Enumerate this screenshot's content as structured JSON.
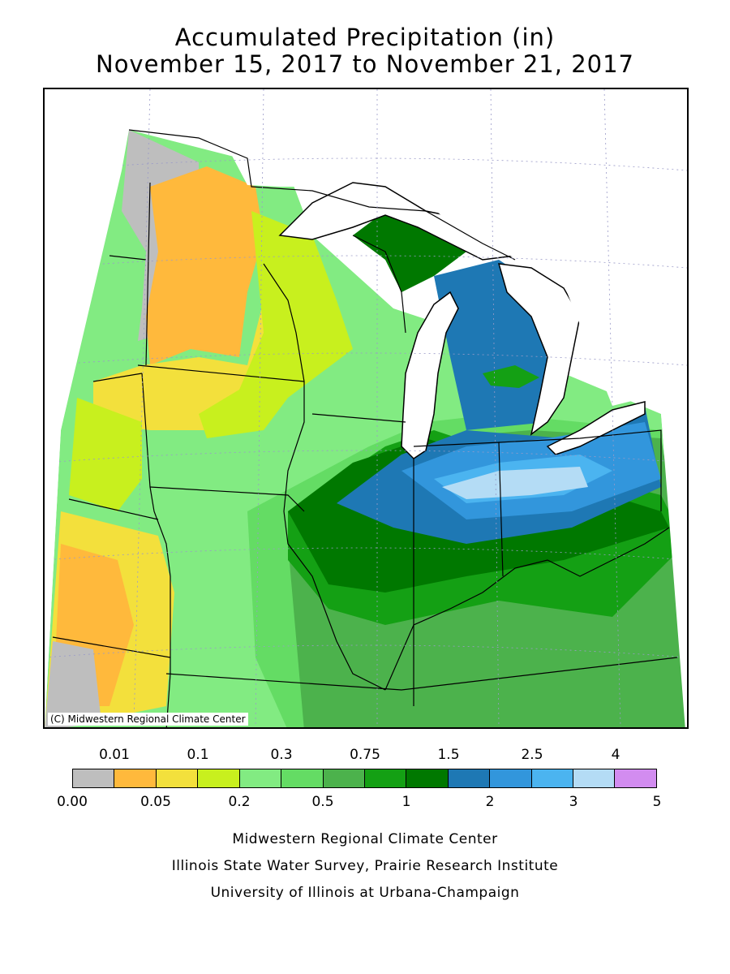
{
  "title": {
    "line1": "Accumulated Precipitation (in)",
    "line2": "November 15, 2017 to November 21, 2017"
  },
  "map": {
    "copyright": "(C) Midwestern Regional Climate Center",
    "land_color": "#ffffff",
    "water_color": "#ffffff"
  },
  "legend": {
    "top_labels": [
      "0.01",
      "0.1",
      "0.3",
      "0.75",
      "1.5",
      "2.5",
      "4"
    ],
    "bottom_labels": [
      "0.00",
      "0.05",
      "0.2",
      "0.5",
      "1",
      "2",
      "3",
      "5"
    ],
    "colors": [
      "#bebebe",
      "#ffb93c",
      "#f3e03c",
      "#c8f01e",
      "#82eb82",
      "#64dc64",
      "#4cb24c",
      "#14a014",
      "#007800",
      "#1e78b4",
      "#3296dc",
      "#4bb4f0",
      "#b4dcf5",
      "#d28cf0"
    ]
  },
  "footer": {
    "line1": "Midwestern Regional Climate Center",
    "line2": "Illinois State Water Survey, Prairie Research Institute",
    "line3": "University of Illinois at Urbana-Champaign"
  }
}
